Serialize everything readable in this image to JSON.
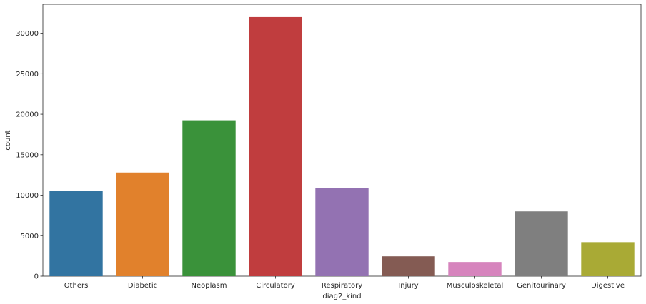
{
  "chart_data": {
    "type": "bar",
    "title": "",
    "xlabel": "diag2_kind",
    "ylabel": "count",
    "categories": [
      "Others",
      "Diabetic",
      "Neoplasm",
      "Circulatory",
      "Respiratory",
      "Injury",
      "Musculoskeletal",
      "Genitourinary",
      "Digestive"
    ],
    "values": [
      10550,
      12800,
      19250,
      32000,
      10900,
      2450,
      1750,
      8000,
      4200
    ],
    "colors": [
      "#3274a1",
      "#e1812c",
      "#3a923a",
      "#c03d3e",
      "#9372b2",
      "#845b53",
      "#d684bd",
      "#7f7f7f",
      "#a9aa35"
    ],
    "ylim": [
      0,
      33580
    ],
    "yticks": [
      0,
      5000,
      10000,
      15000,
      20000,
      25000,
      30000
    ],
    "grid": false,
    "legend": "none"
  }
}
